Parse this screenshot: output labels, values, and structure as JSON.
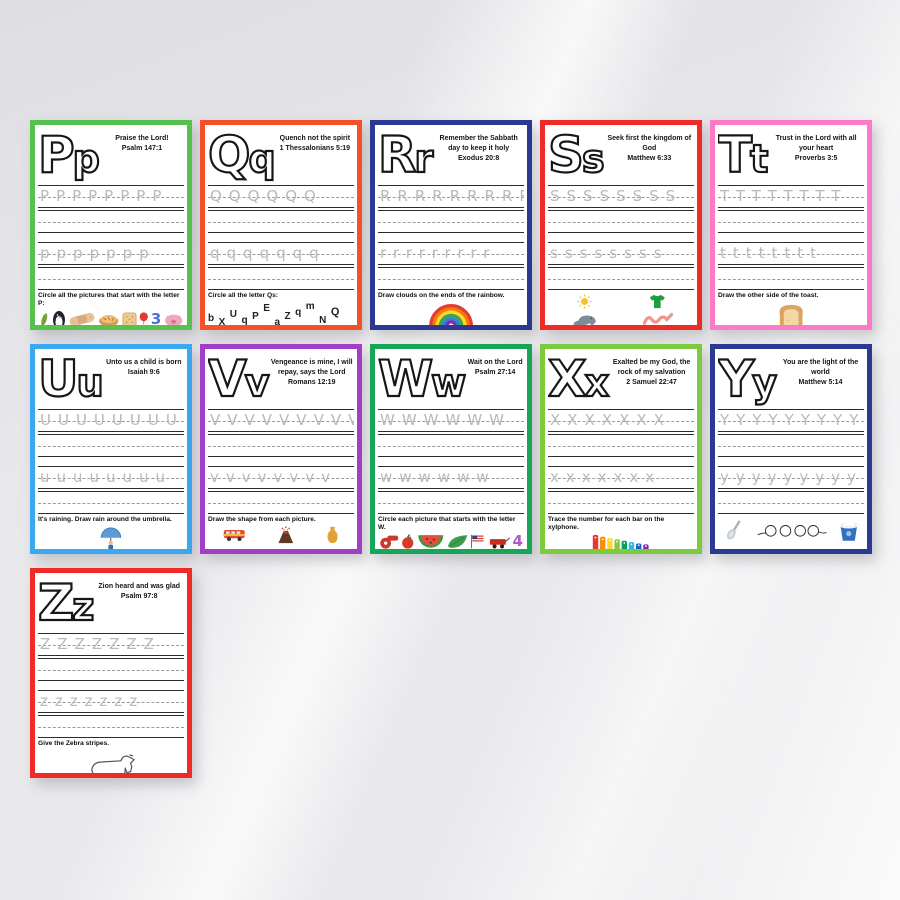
{
  "page": {
    "description": "Alphabet Bible-verse tracing worksheets, letters P through Z"
  },
  "cards": [
    {
      "letter": "P",
      "letter_pair": "Pp",
      "upper": "P",
      "lower": "p",
      "border_color": "#56c14c",
      "verse": "Praise the Lord!",
      "reference": "Psalm 147:1",
      "trace_upper": "PPPPPPPP",
      "trace_lower": "ppppppp",
      "instruction": "Circle all the pictures that start with the letter P:",
      "icons": [
        "pickle",
        "penguin",
        "bandaid",
        "pie",
        "cracker",
        "balloon",
        "number-3",
        "pig",
        "laptop",
        "banana",
        "eraser",
        "donut"
      ],
      "icon_layout": "row"
    },
    {
      "letter": "Q",
      "letter_pair": "Qq",
      "upper": "Q",
      "lower": "q",
      "border_color": "#f4502a",
      "verse": "Quench not the spirit",
      "reference": "1 Thessalonians 5:19",
      "trace_upper": "QQQQQQ",
      "trace_lower": "qqqqqqq",
      "instruction": "Circle all the letter Qs:",
      "scatter_letters": [
        "b",
        "X",
        "U",
        "q",
        "P",
        "E",
        "a",
        "Z",
        "q",
        "m",
        "N",
        "Q",
        "C",
        "e",
        "Q",
        "e",
        "y",
        "Q",
        "f",
        "d",
        "Q",
        "s",
        "w",
        "Q"
      ],
      "icon_layout": "scatter"
    },
    {
      "letter": "R",
      "letter_pair": "Rr",
      "upper": "R",
      "lower": "r",
      "border_color": "#2b3990",
      "verse": "Remember the Sabbath day to keep it holy",
      "reference": "Exodus 20:8",
      "trace_upper": "RRRRRRRRR",
      "trace_lower": "rrrrrrrrr",
      "instruction": "Draw clouds on the ends of the rainbow.",
      "icons": [
        "rainbow"
      ],
      "icon_layout": "center"
    },
    {
      "letter": "S",
      "letter_pair": "Ss",
      "upper": "S",
      "lower": "s",
      "border_color": "#ee2b24",
      "verse": "Seek first the kingdom of God",
      "reference": "Matthew 6:33",
      "trace_upper": "SSSSSSSS",
      "trace_lower": "ssssssss",
      "instruction": "",
      "icons": [
        "sun",
        "tshirt",
        "seal",
        "worm",
        "snail",
        "cloud"
      ],
      "icon_layout": "grid2"
    },
    {
      "letter": "T",
      "letter_pair": "Tt",
      "upper": "T",
      "lower": "t",
      "border_color": "#fb7bc8",
      "verse": "Trust in the Lord with all your heart",
      "reference": "Proverbs 3:5",
      "trace_upper": "TTTTTTTT",
      "trace_lower": "tttttttt",
      "instruction": "Draw the other side of the toast.",
      "icons": [
        "toast"
      ],
      "icon_layout": "center"
    },
    {
      "letter": "U",
      "letter_pair": "Uu",
      "upper": "U",
      "lower": "u",
      "border_color": "#3aa7f0",
      "verse": "Unto us a child is born",
      "reference": "Isaiah 9:6",
      "trace_upper": "UUUUUUUUUU",
      "trace_lower": "uuuuuuuu",
      "instruction": "It's raining. Draw rain around the umbrella.",
      "icons": [
        "umbrella-person"
      ],
      "icon_layout": "center"
    },
    {
      "letter": "V",
      "letter_pair": "Vv",
      "upper": "V",
      "lower": "v",
      "border_color": "#a23fc6",
      "verse": "Vengeance is mine, I will repay, says the Lord",
      "reference": "Romans 12:19",
      "trace_upper": "VVVVVVVVV",
      "trace_lower": "vvvvvvvv",
      "instruction": "Draw the shape from each picture.",
      "icons": [
        "van",
        "volcano",
        "vase"
      ],
      "icon_layout": "row"
    },
    {
      "letter": "W",
      "letter_pair": "Ww",
      "upper": "W",
      "lower": "w",
      "border_color": "#17a657",
      "verse": "Wait on the Lord",
      "reference": "Psalm 27:14",
      "trace_upper": "WWWWWW",
      "trace_lower": "wwwwww",
      "instruction": "Circle each picture that starts with the letter W.",
      "icons": [
        "whistle",
        "apple",
        "watermelon",
        "leaf",
        "flag",
        "wagon",
        "number-4",
        "crab",
        "wheelchair",
        "door",
        "whale",
        "watering-can"
      ],
      "icon_layout": "row"
    },
    {
      "letter": "X",
      "letter_pair": "Xx",
      "upper": "X",
      "lower": "x",
      "border_color": "#7ccb3f",
      "verse": "Exalted be my God, the rock of my salvation",
      "reference": "2 Samuel 22:47",
      "trace_upper": "XXXXXXX",
      "trace_lower": "xxxxxxx",
      "instruction": "Trace the number for each bar on the xylphone.",
      "icons": [
        "xylophone"
      ],
      "icon_layout": "center",
      "xylo_numbers": "1 2 3 4 5 6 7 8"
    },
    {
      "letter": "Y",
      "letter_pair": "Yy",
      "upper": "Y",
      "lower": "y",
      "border_color": "#2b3990",
      "verse": "You are the light of the world",
      "reference": "Matthew 5:14",
      "trace_upper": "YYYYYYYYY",
      "trace_lower": "yyyyyyyyy",
      "instruction": "",
      "icons": [
        "spoon",
        "loops",
        "yogurt"
      ],
      "icon_layout": "row"
    },
    {
      "letter": "Z",
      "letter_pair": "Zz",
      "upper": "Z",
      "lower": "z",
      "border_color": "#ee2b24",
      "verse": "Zion heard and was glad",
      "reference": "Psalm 97:8",
      "trace_upper": "ZZZZZZZ",
      "trace_lower": "zzzzzzz",
      "instruction": "Give the Zebra stripes.",
      "icons": [
        "zebra"
      ],
      "icon_layout": "center"
    }
  ]
}
